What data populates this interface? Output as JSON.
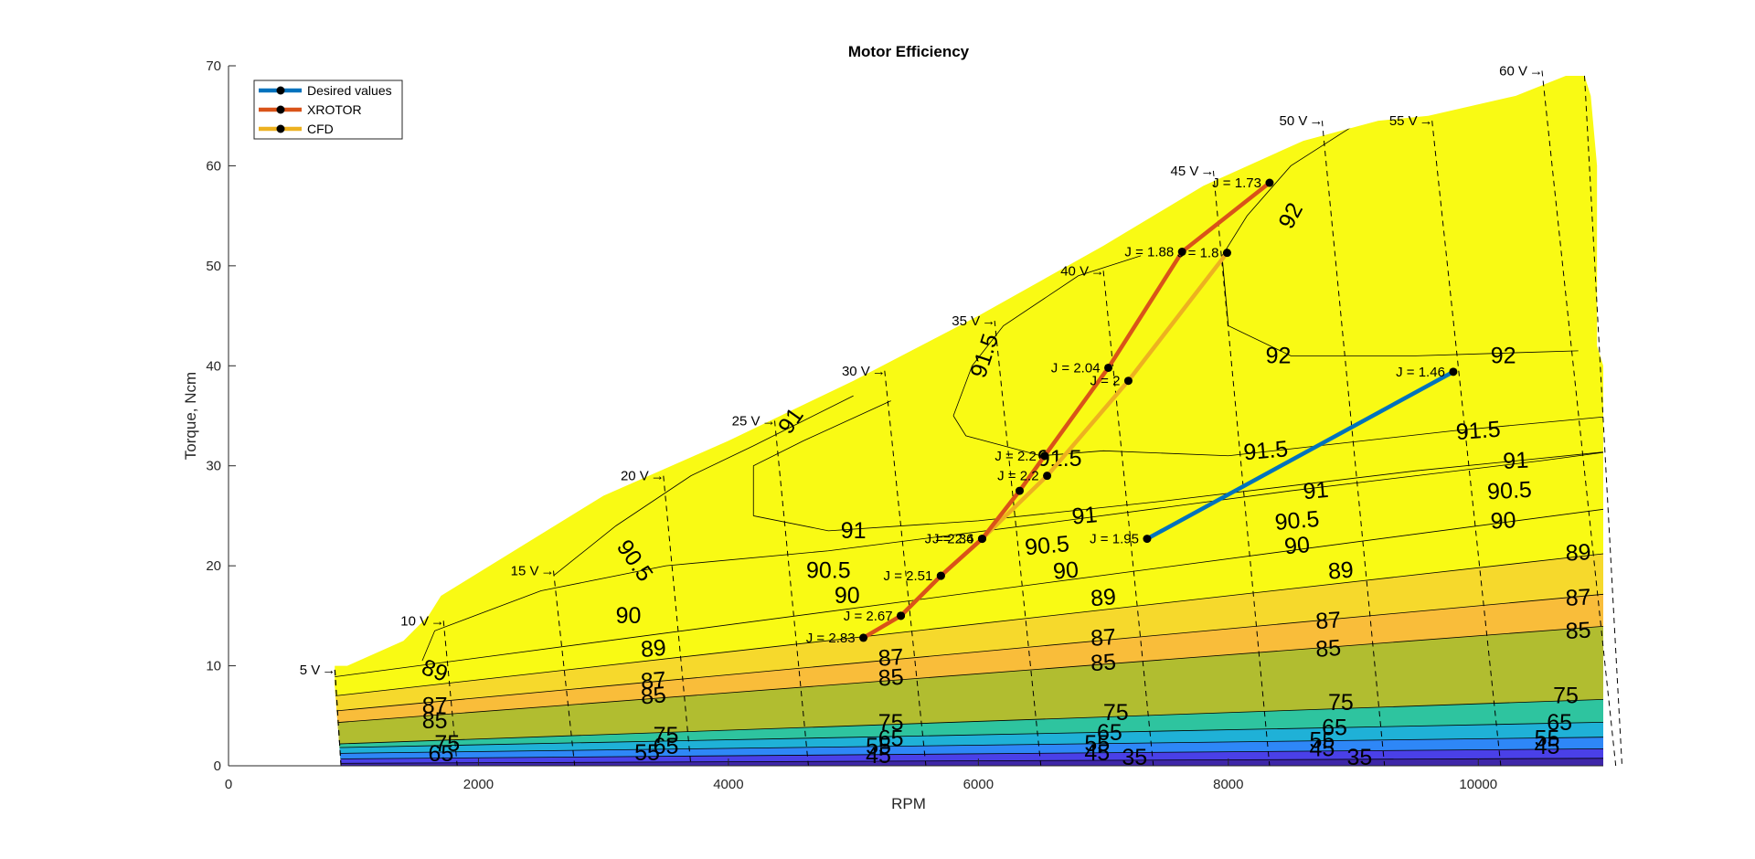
{
  "chart_data": {
    "type": "contour",
    "title": "Motor Efficiency",
    "xlabel": "RPM",
    "ylabel": "Torque, Ncm",
    "xlim": [
      0,
      11000
    ],
    "ylim": [
      0,
      70
    ],
    "xticks": [
      0,
      2000,
      4000,
      6000,
      8000,
      10000
    ],
    "yticks": [
      0,
      10,
      20,
      30,
      40,
      50,
      60,
      70
    ],
    "legend_placement": "top-left",
    "colors": {
      "desired": "#0072BD",
      "xrotor": "#D95319",
      "cfd": "#EDB120",
      "contour_fill": [
        "#3e26a8",
        "#4a40e8",
        "#2e87f7",
        "#1fb1d7",
        "#2ec49f",
        "#b1bd30",
        "#f9bd3a",
        "#f6d92c",
        "#f9fa14"
      ]
    },
    "contour_levels": [
      35,
      45,
      55,
      65,
      75,
      85,
      87,
      89,
      90,
      90.5,
      91,
      91.5,
      92
    ],
    "contour_labels": [
      {
        "text": "92",
        "x": 8500,
        "y": 55,
        "rot": -62
      },
      {
        "text": "92",
        "x": 8400,
        "y": 41,
        "rot": 0
      },
      {
        "text": "92",
        "x": 10200,
        "y": 41,
        "rot": 0
      },
      {
        "text": "91.5",
        "x": 6050,
        "y": 41,
        "rot": -72
      },
      {
        "text": "91.5",
        "x": 6650,
        "y": 30.7,
        "rot": 0
      },
      {
        "text": "91.5",
        "x": 8300,
        "y": 31.5,
        "rot": -5
      },
      {
        "text": "91.5",
        "x": 10000,
        "y": 33.5,
        "rot": -4
      },
      {
        "text": "91",
        "x": 4500,
        "y": 34.5,
        "rot": -55
      },
      {
        "text": "91",
        "x": 5000,
        "y": 23.5,
        "rot": 0
      },
      {
        "text": "91",
        "x": 6850,
        "y": 25,
        "rot": -5
      },
      {
        "text": "91",
        "x": 8700,
        "y": 27.5,
        "rot": -5
      },
      {
        "text": "91",
        "x": 10300,
        "y": 30.5,
        "rot": -3
      },
      {
        "text": "90.5",
        "x": 3250,
        "y": 20.5,
        "rot": 55
      },
      {
        "text": "90.5",
        "x": 4800,
        "y": 19.5,
        "rot": 0
      },
      {
        "text": "90.5",
        "x": 6550,
        "y": 22,
        "rot": -5
      },
      {
        "text": "90.5",
        "x": 8550,
        "y": 24.5,
        "rot": -5
      },
      {
        "text": "90.5",
        "x": 10250,
        "y": 27.5,
        "rot": -3
      },
      {
        "text": "90",
        "x": 3200,
        "y": 15,
        "rot": 0
      },
      {
        "text": "90",
        "x": 4950,
        "y": 17,
        "rot": 0
      },
      {
        "text": "90",
        "x": 6700,
        "y": 19.5,
        "rot": -5
      },
      {
        "text": "90",
        "x": 8550,
        "y": 22,
        "rot": -5
      },
      {
        "text": "90",
        "x": 10200,
        "y": 24.5,
        "rot": -3
      },
      {
        "text": "89",
        "x": 1650,
        "y": 9.5,
        "rot": 20
      },
      {
        "text": "89",
        "x": 3400,
        "y": 11.7,
        "rot": -5
      },
      {
        "text": "89",
        "x": 7000,
        "y": 16.8,
        "rot": -5
      },
      {
        "text": "89",
        "x": 8900,
        "y": 19.5,
        "rot": -5
      },
      {
        "text": "89",
        "x": 10800,
        "y": 21.3,
        "rot": -3
      },
      {
        "text": "87",
        "x": 1650,
        "y": 6,
        "rot": 0
      },
      {
        "text": "87",
        "x": 3400,
        "y": 8.5,
        "rot": -5
      },
      {
        "text": "87",
        "x": 5300,
        "y": 10.8,
        "rot": -4
      },
      {
        "text": "87",
        "x": 7000,
        "y": 12.8,
        "rot": -4
      },
      {
        "text": "87",
        "x": 8800,
        "y": 14.5,
        "rot": -4
      },
      {
        "text": "87",
        "x": 10800,
        "y": 16.8,
        "rot": -3
      },
      {
        "text": "85",
        "x": 1650,
        "y": 4.5,
        "rot": 0
      },
      {
        "text": "85",
        "x": 3400,
        "y": 7,
        "rot": -5
      },
      {
        "text": "85",
        "x": 5300,
        "y": 8.8,
        "rot": -4
      },
      {
        "text": "85",
        "x": 7000,
        "y": 10.3,
        "rot": -4
      },
      {
        "text": "85",
        "x": 8800,
        "y": 11.7,
        "rot": -4
      },
      {
        "text": "85",
        "x": 10800,
        "y": 13.5,
        "rot": -3
      },
      {
        "text": "75",
        "x": 1750,
        "y": 2.2,
        "rot": 0
      },
      {
        "text": "75",
        "x": 3500,
        "y": 3,
        "rot": 0
      },
      {
        "text": "75",
        "x": 5300,
        "y": 4.3,
        "rot": 0
      },
      {
        "text": "75",
        "x": 7100,
        "y": 5.3,
        "rot": 0
      },
      {
        "text": "75",
        "x": 8900,
        "y": 6.3,
        "rot": 0
      },
      {
        "text": "75",
        "x": 10700,
        "y": 7,
        "rot": 0
      },
      {
        "text": "65",
        "x": 1700,
        "y": 1.2,
        "rot": 0
      },
      {
        "text": "65",
        "x": 3500,
        "y": 1.9,
        "rot": 0
      },
      {
        "text": "65",
        "x": 5300,
        "y": 2.7,
        "rot": 0
      },
      {
        "text": "65",
        "x": 7050,
        "y": 3.3,
        "rot": 0
      },
      {
        "text": "65",
        "x": 8850,
        "y": 3.8,
        "rot": 0
      },
      {
        "text": "65",
        "x": 10650,
        "y": 4.3,
        "rot": 0
      },
      {
        "text": "55",
        "x": 3350,
        "y": 1.3,
        "rot": 0
      },
      {
        "text": "55",
        "x": 5200,
        "y": 1.9,
        "rot": 0
      },
      {
        "text": "55",
        "x": 6950,
        "y": 2.2,
        "rot": 0
      },
      {
        "text": "55",
        "x": 8750,
        "y": 2.5,
        "rot": 0
      },
      {
        "text": "55",
        "x": 10550,
        "y": 2.7,
        "rot": 0
      },
      {
        "text": "45",
        "x": 5200,
        "y": 1,
        "rot": 0
      },
      {
        "text": "45",
        "x": 6950,
        "y": 1.3,
        "rot": 0
      },
      {
        "text": "45",
        "x": 8750,
        "y": 1.7,
        "rot": 0
      },
      {
        "text": "45",
        "x": 10550,
        "y": 1.9,
        "rot": 0
      },
      {
        "text": "35",
        "x": 7250,
        "y": 0.8,
        "rot": 0
      },
      {
        "text": "35",
        "x": 9050,
        "y": 0.8,
        "rot": 0
      }
    ],
    "voltage_lines": [
      {
        "label": "5 V",
        "top": [
          850,
          9.6
        ],
        "bottom": [
          900,
          0
        ]
      },
      {
        "label": "10 V",
        "top": [
          1720,
          14.5
        ],
        "bottom": [
          1830,
          0
        ]
      },
      {
        "label": "15 V",
        "top": [
          2600,
          19.5
        ],
        "bottom": [
          2770,
          0
        ]
      },
      {
        "label": "20 V",
        "top": [
          3480,
          29
        ],
        "bottom": [
          3700,
          0
        ]
      },
      {
        "label": "25 V",
        "top": [
          4370,
          34.5
        ],
        "bottom": [
          4640,
          0
        ]
      },
      {
        "label": "30 V",
        "top": [
          5250,
          39.5
        ],
        "bottom": [
          5580,
          0
        ]
      },
      {
        "label": "35 V",
        "top": [
          6130,
          44.5
        ],
        "bottom": [
          6500,
          0
        ]
      },
      {
        "label": "40 V",
        "top": [
          7000,
          49.5
        ],
        "bottom": [
          7400,
          0
        ]
      },
      {
        "label": "45 V",
        "top": [
          7880,
          59.5
        ],
        "bottom": [
          8330,
          0
        ]
      },
      {
        "label": "50 V",
        "top": [
          8750,
          64.5
        ],
        "bottom": [
          9250,
          0
        ]
      },
      {
        "label": "55 V",
        "top": [
          9630,
          64.5
        ],
        "bottom": [
          10180,
          0
        ]
      },
      {
        "label": "60 V",
        "top": [
          10510,
          69.5
        ],
        "bottom": [
          11100,
          0
        ]
      }
    ],
    "series": [
      {
        "name": "Desired values",
        "x": [
          7350,
          9800
        ],
        "y": [
          22.7,
          39.4
        ],
        "point_labels": [
          "J = 1.95",
          "J = 1.46"
        ]
      },
      {
        "name": "XROTOR",
        "x": [
          5080,
          5380,
          5700,
          6030,
          6330,
          6530,
          7040,
          7630,
          8330
        ],
        "y": [
          12.8,
          15,
          19,
          22.7,
          27.5,
          31,
          39.8,
          51.4,
          58.3
        ],
        "point_labels": [
          "J = 2.83",
          "J = 2.67",
          "J = 2.51",
          "J = 2.36",
          "",
          "J = 2.2",
          "J = 2.04",
          "J = 1.88",
          "J = 1.73"
        ]
      },
      {
        "name": "CFD",
        "x": [
          5380,
          5700,
          6030,
          6550,
          7200,
          7990
        ],
        "y": [
          15,
          19,
          22.7,
          29,
          38.5,
          51.3
        ],
        "point_labels": [
          "",
          "",
          "J = 2.4",
          "J = 2.2",
          "J = 2",
          "J = 1.8"
        ]
      }
    ]
  }
}
